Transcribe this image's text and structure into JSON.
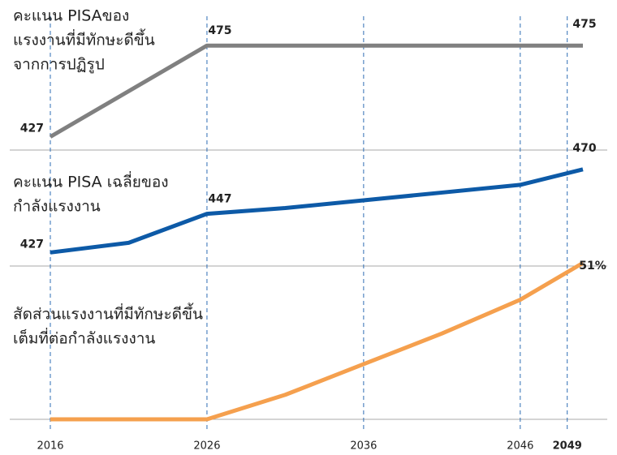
{
  "x_axis": {
    "xlim": [
      2016,
      2050
    ],
    "xticks": [
      2016,
      2026,
      2036,
      2046,
      2049
    ]
  },
  "chart_data": [
    {
      "type": "line",
      "title": [
        "คะแนน PISAของ",
        "แรงงานที่มีทักษะดีขึ้น",
        "จากการปฏิรูป"
      ],
      "ylim": [
        420,
        499
      ],
      "series": [
        {
          "color": "#808080",
          "x": [
            2016,
            2026,
            2050
          ],
          "values": [
            427,
            475,
            475
          ],
          "value_labels": [
            "427",
            "475",
            "475"
          ]
        }
      ]
    },
    {
      "type": "line",
      "title": [
        "คะแนน PISA เฉลี่ยของ",
        "กำลังแรงงาน"
      ],
      "ylim": [
        420,
        480
      ],
      "series": [
        {
          "color": "#0d5aa7",
          "x": [
            2016,
            2021,
            2026,
            2031,
            2036,
            2041,
            2046,
            2050
          ],
          "values": [
            427,
            432,
            447,
            450,
            454,
            458,
            462,
            470
          ],
          "value_labels": [
            "427",
            null,
            "447",
            null,
            null,
            null,
            null,
            "470"
          ]
        }
      ]
    },
    {
      "type": "line",
      "title": [
        "สัดส่วนแรงงานที่มีทักษะดีขึ้น",
        "เต็มที่ต่อกำลังแรงงาน"
      ],
      "ylim": [
        0,
        50
      ],
      "series": [
        {
          "color": "#f5a04e",
          "x": [
            2016,
            2026,
            2031,
            2036,
            2041,
            2046,
            2050
          ],
          "values": [
            0,
            0,
            8,
            18,
            28,
            39,
            51
          ],
          "value_labels": [
            null,
            null,
            null,
            null,
            null,
            null,
            "51%"
          ]
        }
      ]
    }
  ]
}
